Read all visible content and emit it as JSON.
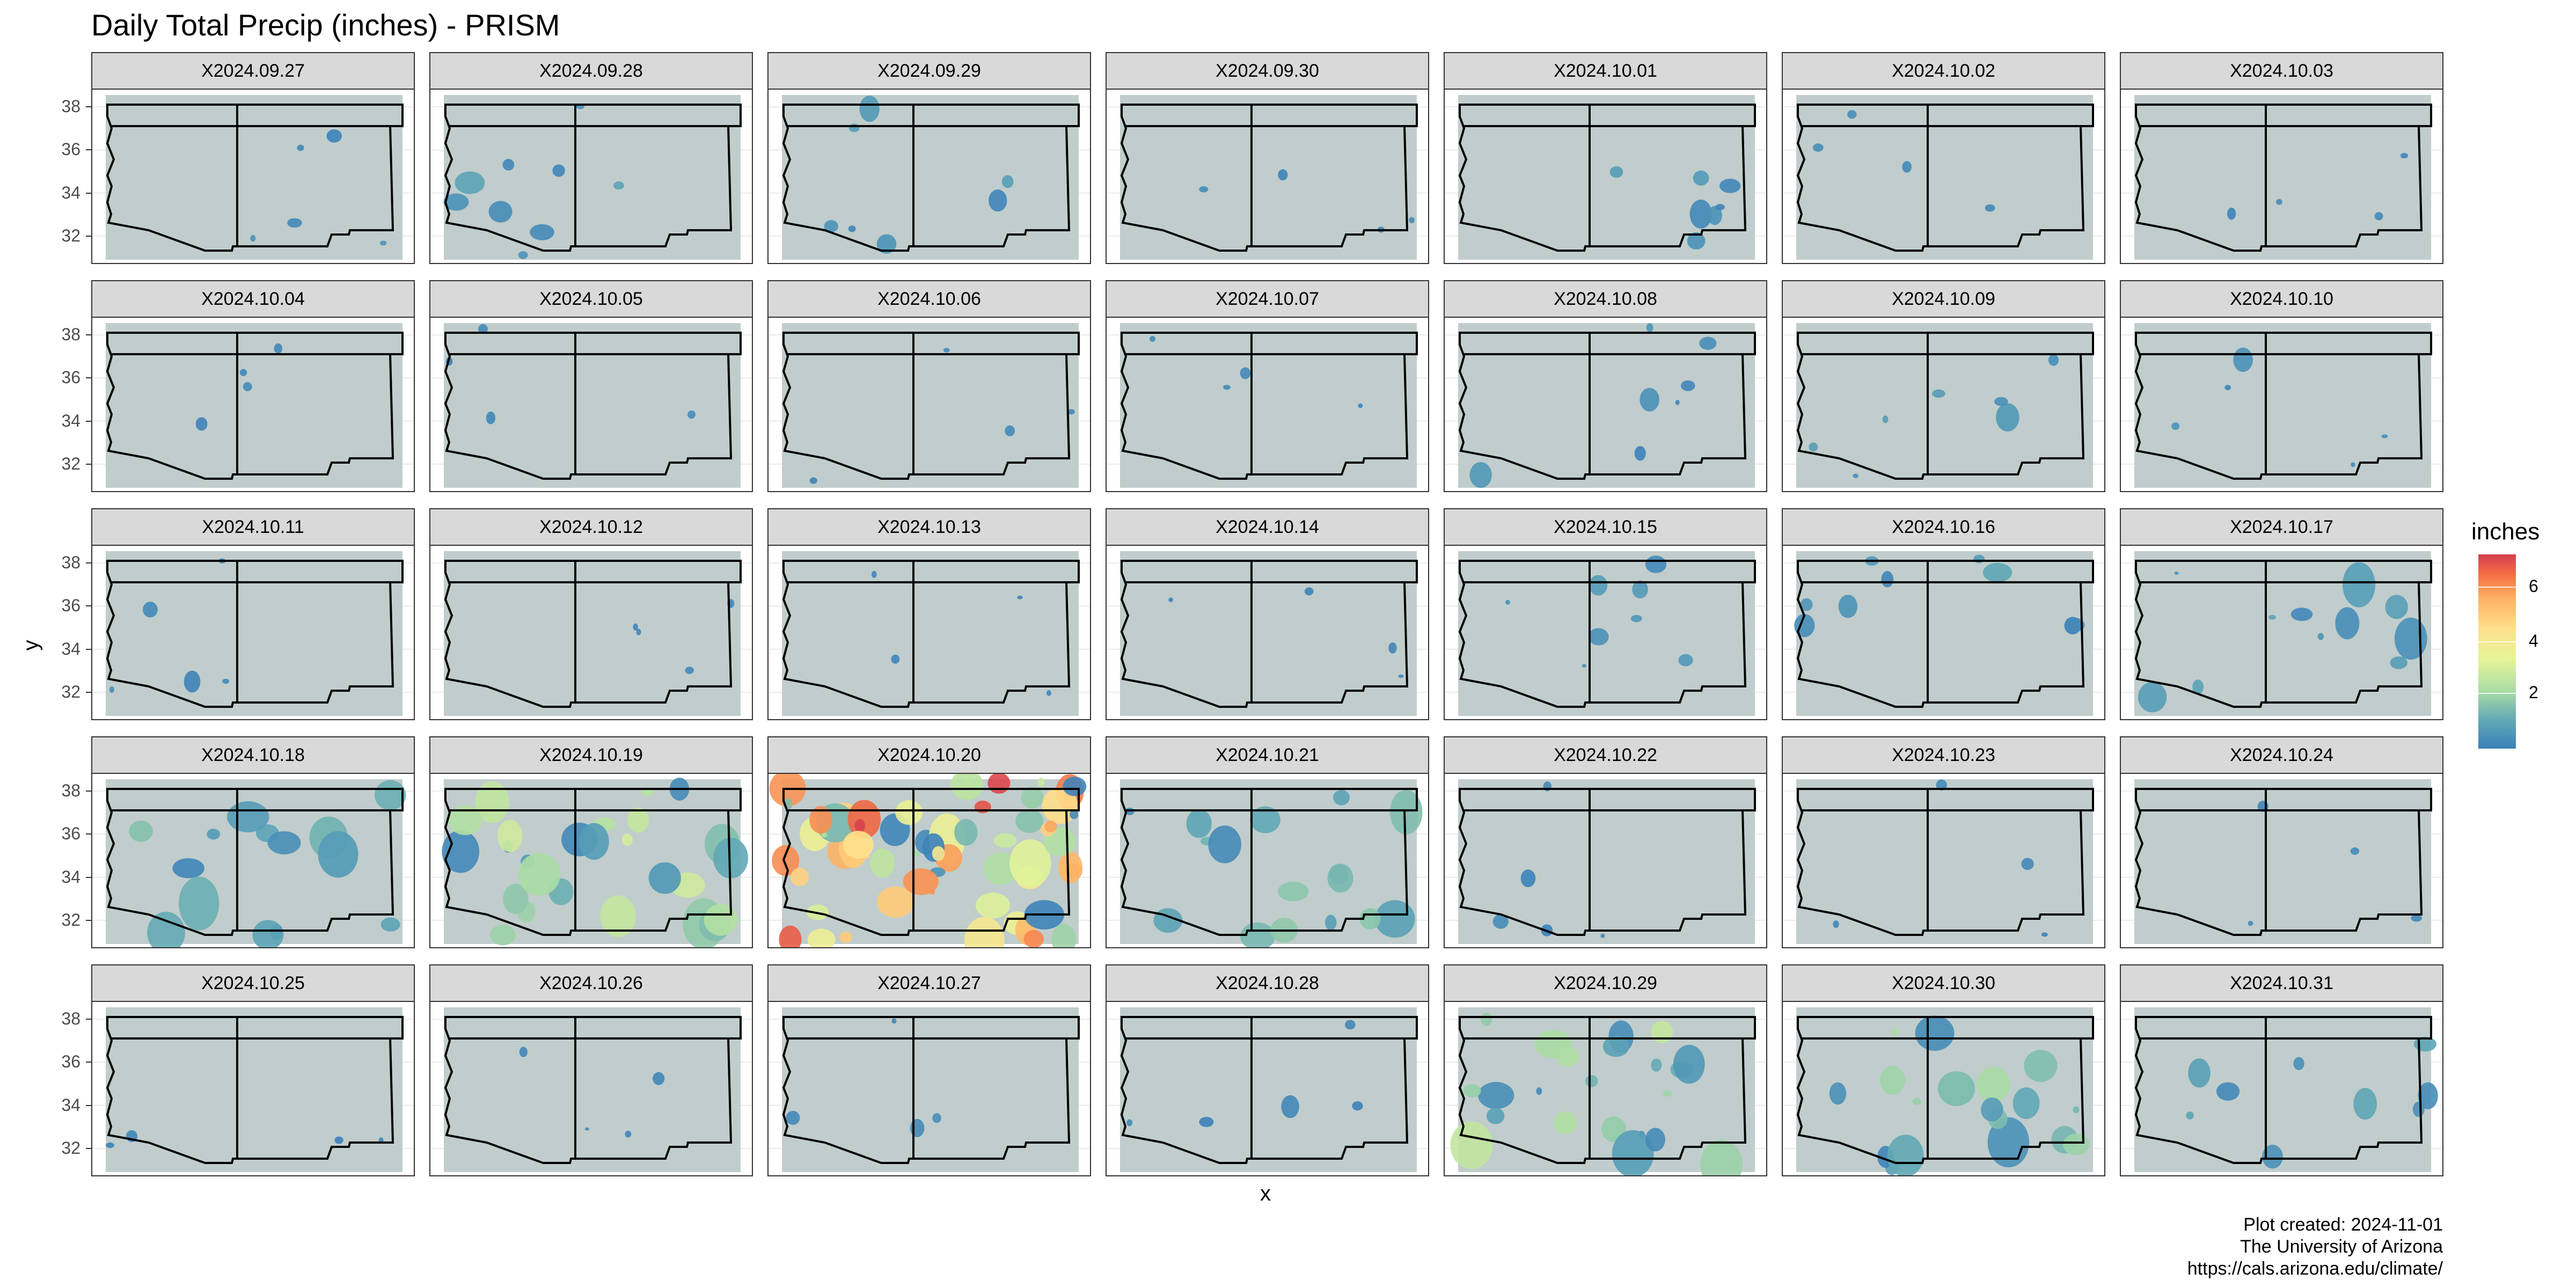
{
  "title": "Daily Total Precip (inches) - PRISM",
  "x_axis_label": "x",
  "y_axis_label": "y",
  "caption": [
    "Plot created: 2024-11-01",
    "The University of Arizona",
    "https://cals.arizona.edu/climate/"
  ],
  "legend": {
    "title": "inches",
    "ticks": [
      "2",
      "4",
      "6"
    ]
  },
  "y_ticks": [
    "38",
    "36",
    "34",
    "32"
  ],
  "colors": {
    "land": "#c0cdcc",
    "low_precip": "#3b80b9",
    "mid_precip": "#abdda4",
    "high_precip": "#d53e4f",
    "strip": "#d9d9d9"
  },
  "chart_data": {
    "type": "heatmap",
    "title": "Daily Total Precip (inches) - PRISM",
    "xlabel": "x",
    "ylabel": "y",
    "ylim": [
      31,
      38.5
    ],
    "y_ticks": [
      32,
      34,
      36,
      38
    ],
    "legend_title": "inches",
    "colorbar_range": [
      0,
      7
    ],
    "colorbar_ticks": [
      2,
      4,
      6
    ],
    "grid": true,
    "legend_position": "right",
    "facets": [
      {
        "label": "X2024.09.27",
        "max_inches": 0.5
      },
      {
        "label": "X2024.09.28",
        "max_inches": 1.0
      },
      {
        "label": "X2024.09.29",
        "max_inches": 0.8
      },
      {
        "label": "X2024.09.30",
        "max_inches": 0.3
      },
      {
        "label": "X2024.10.01",
        "max_inches": 0.8
      },
      {
        "label": "X2024.10.02",
        "max_inches": 0.4
      },
      {
        "label": "X2024.10.03",
        "max_inches": 0.3
      },
      {
        "label": "X2024.10.04",
        "max_inches": 0.3
      },
      {
        "label": "X2024.10.05",
        "max_inches": 0.3
      },
      {
        "label": "X2024.10.06",
        "max_inches": 0.3
      },
      {
        "label": "X2024.10.07",
        "max_inches": 0.3
      },
      {
        "label": "X2024.10.08",
        "max_inches": 0.8
      },
      {
        "label": "X2024.10.09",
        "max_inches": 0.8
      },
      {
        "label": "X2024.10.10",
        "max_inches": 0.6
      },
      {
        "label": "X2024.10.11",
        "max_inches": 0.5
      },
      {
        "label": "X2024.10.12",
        "max_inches": 0.2
      },
      {
        "label": "X2024.10.13",
        "max_inches": 0.2
      },
      {
        "label": "X2024.10.14",
        "max_inches": 0.2
      },
      {
        "label": "X2024.10.15",
        "max_inches": 0.9
      },
      {
        "label": "X2024.10.16",
        "max_inches": 1.0
      },
      {
        "label": "X2024.10.17",
        "max_inches": 1.2
      },
      {
        "label": "X2024.10.18",
        "max_inches": 1.5
      },
      {
        "label": "X2024.10.19",
        "max_inches": 3.0
      },
      {
        "label": "X2024.10.20",
        "max_inches": 7.0
      },
      {
        "label": "X2024.10.21",
        "max_inches": 1.8
      },
      {
        "label": "X2024.10.22",
        "max_inches": 0.6
      },
      {
        "label": "X2024.10.23",
        "max_inches": 0.4
      },
      {
        "label": "X2024.10.24",
        "max_inches": 0.3
      },
      {
        "label": "X2024.10.25",
        "max_inches": 0.3
      },
      {
        "label": "X2024.10.26",
        "max_inches": 0.3
      },
      {
        "label": "X2024.10.27",
        "max_inches": 0.4
      },
      {
        "label": "X2024.10.28",
        "max_inches": 0.6
      },
      {
        "label": "X2024.10.29",
        "max_inches": 2.5
      },
      {
        "label": "X2024.10.30",
        "max_inches": 2.0
      },
      {
        "label": "X2024.10.31",
        "max_inches": 1.0
      }
    ]
  }
}
